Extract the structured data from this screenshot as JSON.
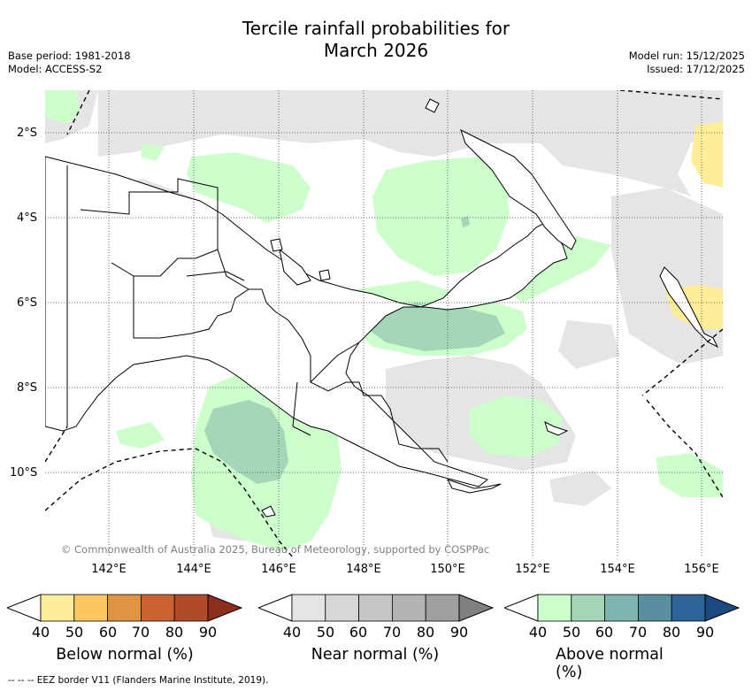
{
  "title_line1": "Tercile rainfall probabilities for",
  "title_line2": "March 2026",
  "base_period": "Base period: 1981-2018",
  "model": "Model: ACCESS-S2",
  "model_run": "Model run: 15/12/2025",
  "issued": "Issued: 17/12/2025",
  "y_labels": [
    "2°S",
    "4°S",
    "6°S",
    "8°S",
    "10°S"
  ],
  "x_labels": [
    "142°E",
    "144°E",
    "146°E",
    "148°E",
    "150°E",
    "152°E",
    "154°E",
    "156°E"
  ],
  "copyright": "© Commonwealth of Australia 2025, Bureau of Meteorology, supported by COSPPac",
  "colorbars": [
    {
      "title": "Below normal (%)",
      "ticks": [
        "40",
        "50",
        "60",
        "70",
        "80",
        "90"
      ],
      "colors": [
        "#ffee99",
        "#fcc660",
        "#e09442",
        "#cb6230",
        "#b04a28",
        "#8c2e1c"
      ]
    },
    {
      "title": "Near normal (%)",
      "ticks": [
        "40",
        "50",
        "60",
        "70",
        "80",
        "90"
      ],
      "colors": [
        "#e5e5e5",
        "#d7d7d7",
        "#c6c6c6",
        "#b3b3b3",
        "#a0a0a0",
        "#808080"
      ]
    },
    {
      "title": "Above normal (%)",
      "ticks": [
        "40",
        "50",
        "60",
        "70",
        "80",
        "90"
      ],
      "colors": [
        "#ccffcc",
        "#a4d6b8",
        "#7fb4b0",
        "#5a8fa0",
        "#2f6498",
        "#1a4a80"
      ]
    }
  ],
  "footer": "--  --  -- EEZ border V11 (Flanders Marine Institute, 2019)."
}
